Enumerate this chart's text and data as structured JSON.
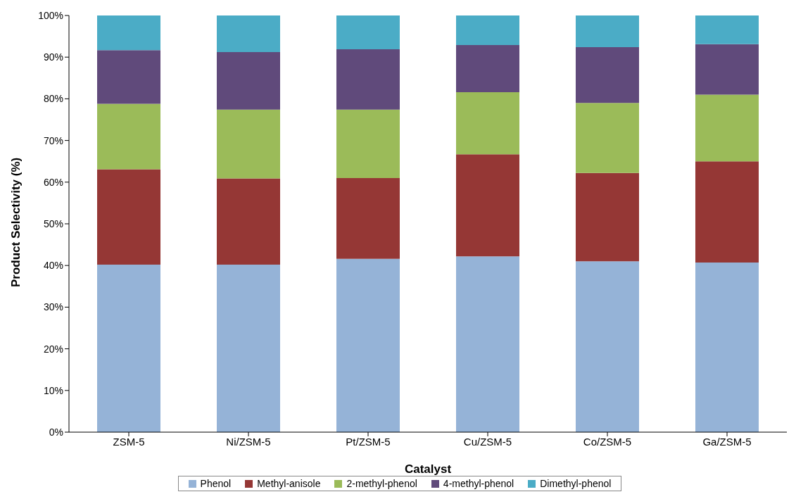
{
  "chart_data": {
    "type": "bar",
    "stacked": true,
    "xlabel": "Catalyst",
    "ylabel": "Product Selectivity (%)",
    "categories": [
      "ZSM-5",
      "Ni/ZSM-5",
      "Pt/ZSM-5",
      "Cu/ZSM-5",
      "Co/ZSM-5",
      "Ga/ZSM-5"
    ],
    "series": [
      {
        "name": "Phenol",
        "color": "#95b3d7",
        "values": [
          40.2,
          40.2,
          41.6,
          42.2,
          41.0,
          40.7
        ]
      },
      {
        "name": "Methyl-anisole",
        "color": "#953735",
        "values": [
          22.9,
          20.7,
          19.4,
          24.5,
          21.2,
          24.3
        ]
      },
      {
        "name": "2-methyl-phenol",
        "color": "#9bbb59",
        "values": [
          15.7,
          16.5,
          16.4,
          14.9,
          16.8,
          16.0
        ]
      },
      {
        "name": "4-methyl-phenol",
        "color": "#604a7b",
        "values": [
          12.9,
          13.8,
          14.5,
          11.3,
          13.4,
          12.1
        ]
      },
      {
        "name": "Dimethyl-phenol",
        "color": "#4bacc6",
        "values": [
          8.3,
          8.8,
          8.1,
          7.1,
          7.6,
          6.9
        ]
      }
    ],
    "ylim": [
      0,
      100
    ],
    "yticks": [
      {
        "value": 0,
        "label": "0%"
      },
      {
        "value": 10,
        "label": "10%"
      },
      {
        "value": 20,
        "label": "20%"
      },
      {
        "value": 30,
        "label": "30%"
      },
      {
        "value": 40,
        "label": "40%"
      },
      {
        "value": 50,
        "label": "50%"
      },
      {
        "value": 60,
        "label": "60%"
      },
      {
        "value": 70,
        "label": "70%"
      },
      {
        "value": 80,
        "label": "80%"
      },
      {
        "value": 90,
        "label": "90%"
      },
      {
        "value": 100,
        "label": "100%"
      }
    ],
    "grid": false,
    "legend": "bottom"
  }
}
